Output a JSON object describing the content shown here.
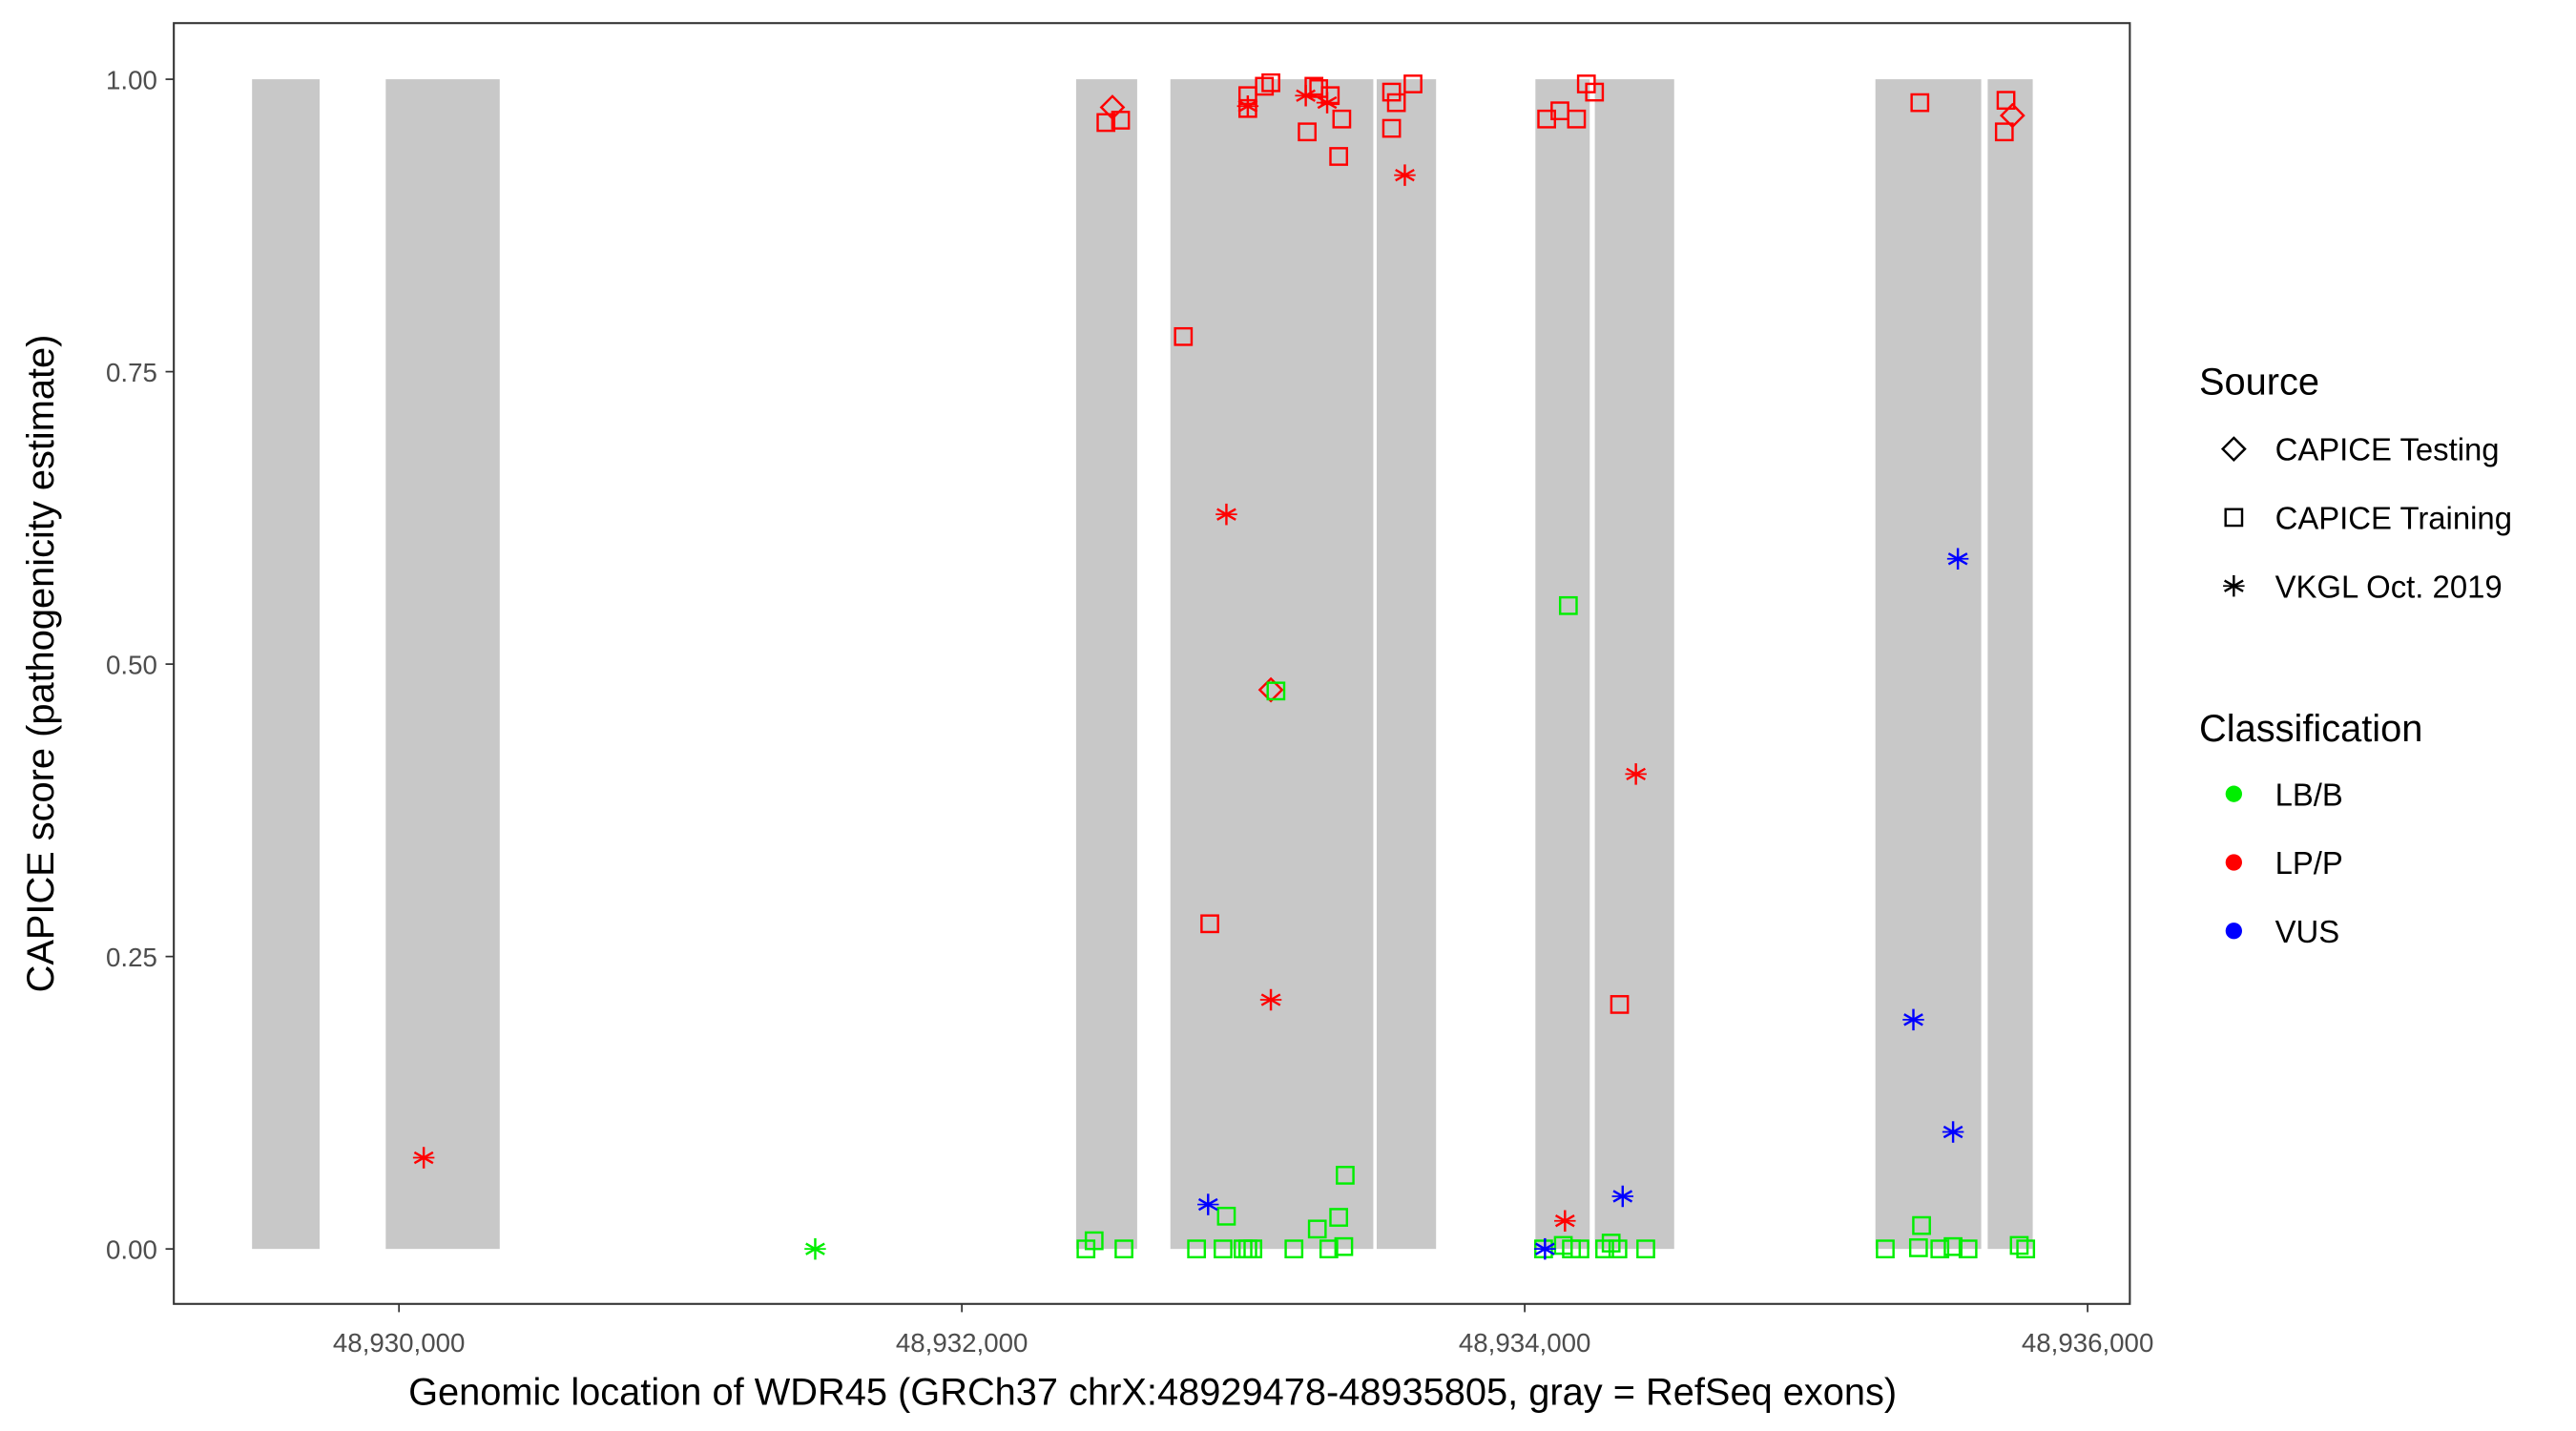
{
  "chart_data": {
    "type": "scatter",
    "xlabel": "Genomic location of WDR45 (GRCh37 chrX:48929478-48935805, gray = RefSeq exons)",
    "ylabel": "CAPICE score (pathogenicity estimate)",
    "xlim": [
      48929200,
      48936150
    ],
    "ylim": [
      -0.047,
      1.048
    ],
    "x_ticks": [
      48930000,
      48932000,
      48934000,
      48936000
    ],
    "x_tick_labels": [
      "48,930,000",
      "48,932,000",
      "48,934,000",
      "48,936,000"
    ],
    "y_ticks": [
      0,
      0.25,
      0.5,
      0.75,
      1.0
    ],
    "y_tick_labels": [
      "0.00",
      "0.25",
      "0.50",
      "0.75",
      "1.00"
    ],
    "grid": false,
    "exons": [
      [
        48929478,
        48929718
      ],
      [
        48929953,
        48930358
      ],
      [
        48932406,
        48932623
      ],
      [
        48932741,
        48933462
      ],
      [
        48933474,
        48933685
      ],
      [
        48934038,
        48934231
      ],
      [
        48934249,
        48934531
      ],
      [
        48935246,
        48935622
      ],
      [
        48935645,
        48935805
      ]
    ],
    "exon_color": "#c8c8c8",
    "legend_placement": "right",
    "legend": {
      "source_title": "Source",
      "sources": [
        {
          "label": "CAPICE Testing",
          "shape": "diamond"
        },
        {
          "label": "CAPICE Training",
          "shape": "square"
        },
        {
          "label": "VKGL Oct. 2019",
          "shape": "asterisk"
        }
      ],
      "class_title": "Classification",
      "classes": [
        {
          "label": "LB/B",
          "color": "#00ee00"
        },
        {
          "label": "LP/P",
          "color": "#ff0000"
        },
        {
          "label": "VUS",
          "color": "#0000ff"
        }
      ]
    },
    "points_columns": [
      "position",
      "score",
      "source_index",
      "class_index"
    ],
    "points": [
      [
        48930088,
        0.078,
        2,
        1
      ],
      [
        48932940,
        0.628,
        2,
        1
      ],
      [
        48933098,
        0.213,
        2,
        1
      ],
      [
        48933574,
        0.918,
        2,
        1
      ],
      [
        48934395,
        0.406,
        2,
        1
      ],
      [
        48934143,
        0.024,
        2,
        1
      ],
      [
        48933016,
        0.977,
        2,
        1
      ],
      [
        48933222,
        0.986,
        2,
        1
      ],
      [
        48933298,
        0.98,
        2,
        1
      ],
      [
        48932535,
        0.976,
        0,
        1
      ],
      [
        48933098,
        0.478,
        0,
        1
      ],
      [
        48935733,
        0.969,
        0,
        1
      ],
      [
        48932512,
        0.963,
        1,
        1
      ],
      [
        48932564,
        0.965,
        1,
        1
      ],
      [
        48933016,
        0.986,
        1,
        1
      ],
      [
        48933016,
        0.975,
        1,
        1
      ],
      [
        48933075,
        0.994,
        1,
        1
      ],
      [
        48933098,
        0.997,
        1,
        1
      ],
      [
        48933227,
        0.955,
        1,
        1
      ],
      [
        48933251,
        0.994,
        1,
        1
      ],
      [
        48933268,
        0.992,
        1,
        1
      ],
      [
        48933309,
        0.986,
        1,
        1
      ],
      [
        48933350,
        0.966,
        1,
        1
      ],
      [
        48933339,
        0.934,
        1,
        1
      ],
      [
        48933527,
        0.989,
        1,
        1
      ],
      [
        48933544,
        0.98,
        1,
        1
      ],
      [
        48933527,
        0.958,
        1,
        1
      ],
      [
        48933603,
        0.996,
        1,
        1
      ],
      [
        48934078,
        0.966,
        1,
        1
      ],
      [
        48934125,
        0.973,
        1,
        1
      ],
      [
        48934184,
        0.966,
        1,
        1
      ],
      [
        48934219,
        0.996,
        1,
        1
      ],
      [
        48934248,
        0.989,
        1,
        1
      ],
      [
        48935404,
        0.98,
        1,
        1
      ],
      [
        48935710,
        0.982,
        1,
        1
      ],
      [
        48935704,
        0.955,
        1,
        1
      ],
      [
        48932787,
        0.78,
        1,
        1
      ],
      [
        48932881,
        0.278,
        1,
        1
      ],
      [
        48934337,
        0.209,
        1,
        1
      ],
      [
        48931479,
        0.0,
        2,
        0
      ],
      [
        48933116,
        0.477,
        1,
        0
      ],
      [
        48934155,
        0.55,
        1,
        0
      ],
      [
        48933362,
        0.063,
        1,
        0
      ],
      [
        48933339,
        0.027,
        1,
        0
      ],
      [
        48933263,
        0.017,
        1,
        0
      ],
      [
        48932940,
        0.028,
        1,
        0
      ],
      [
        48935410,
        0.02,
        1,
        0
      ],
      [
        48932441,
        0.0,
        1,
        0
      ],
      [
        48932470,
        0.007,
        1,
        0
      ],
      [
        48932576,
        0.0,
        1,
        0
      ],
      [
        48932834,
        0.0,
        1,
        0
      ],
      [
        48932928,
        0.0,
        1,
        0
      ],
      [
        48932999,
        0.0,
        1,
        0
      ],
      [
        48933016,
        0.0,
        1,
        0
      ],
      [
        48933034,
        0.0,
        1,
        0
      ],
      [
        48933180,
        0.0,
        1,
        0
      ],
      [
        48933304,
        0.0,
        1,
        0
      ],
      [
        48933357,
        0.002,
        1,
        0
      ],
      [
        48934067,
        0.0,
        1,
        0
      ],
      [
        48934137,
        0.003,
        1,
        0
      ],
      [
        48934166,
        0.0,
        1,
        0
      ],
      [
        48934196,
        0.0,
        1,
        0
      ],
      [
        48934284,
        0.0,
        1,
        0
      ],
      [
        48934307,
        0.005,
        1,
        0
      ],
      [
        48934331,
        0.0,
        1,
        0
      ],
      [
        48934430,
        0.0,
        1,
        0
      ],
      [
        48935281,
        0.0,
        1,
        0
      ],
      [
        48935399,
        0.001,
        1,
        0
      ],
      [
        48935475,
        0.0,
        1,
        0
      ],
      [
        48935522,
        0.002,
        1,
        0
      ],
      [
        48935575,
        0.0,
        1,
        0
      ],
      [
        48935757,
        0.003,
        1,
        0
      ],
      [
        48935780,
        0.0,
        1,
        0
      ],
      [
        48932875,
        0.038,
        2,
        2
      ],
      [
        48934072,
        0.0,
        2,
        2
      ],
      [
        48934348,
        0.045,
        2,
        2
      ],
      [
        48935381,
        0.196,
        2,
        2
      ],
      [
        48935539,
        0.59,
        2,
        2
      ],
      [
        48935522,
        0.1,
        2,
        2
      ]
    ]
  }
}
